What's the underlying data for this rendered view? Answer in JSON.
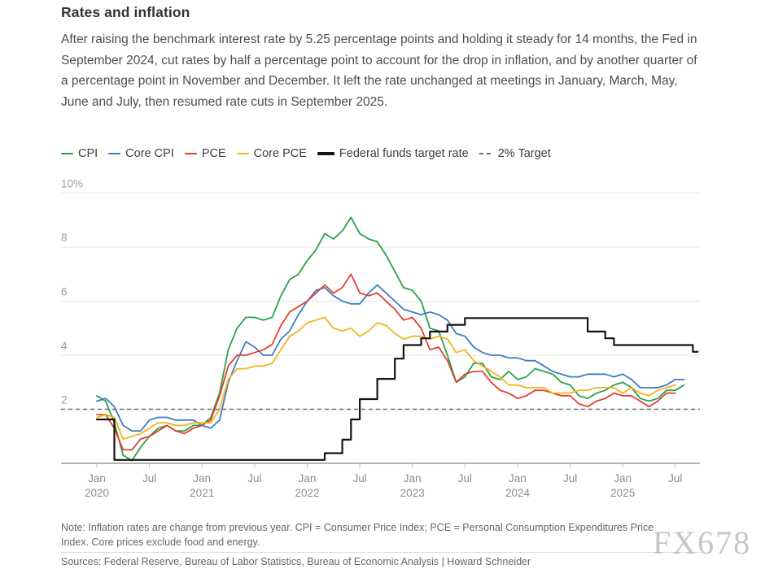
{
  "header": {
    "title": "Rates and inflation",
    "description": "After raising the benchmark interest rate by 5.25 percentage points and holding it steady for 14 months, the Fed in September 2024, cut rates by half a percentage point to account for the drop in inflation, and by another quarter of a percentage point in November and December. It left the rate unchanged at meetings in January, March, May, June and July, then resumed rate cuts in September 2025."
  },
  "legend": {
    "items": [
      {
        "label": "CPI",
        "color": "#2aa148",
        "style": "line"
      },
      {
        "label": "Core CPI",
        "color": "#3d7dc1",
        "style": "line"
      },
      {
        "label": "PCE",
        "color": "#e2402f",
        "style": "line"
      },
      {
        "label": "Core PCE",
        "color": "#f0b41f",
        "style": "line"
      },
      {
        "label": "Federal funds target rate",
        "color": "#141414",
        "style": "thick-line"
      },
      {
        "label": "2% Target",
        "color": "#6b6b6b",
        "style": "dashed"
      }
    ]
  },
  "chart_data": {
    "type": "line",
    "title": "Rates and inflation",
    "x_start": "2020-01",
    "x_frequency": "monthly",
    "xlabel": "",
    "ylabel": "percent",
    "ylim": [
      0,
      10
    ],
    "grid": true,
    "legend_position": "top",
    "yticks": [
      {
        "value": 2,
        "label": "2"
      },
      {
        "value": 4,
        "label": "4"
      },
      {
        "value": 6,
        "label": "6"
      },
      {
        "value": 8,
        "label": "8"
      },
      {
        "value": 10,
        "label": "10%"
      }
    ],
    "xticks": [
      {
        "m": 0,
        "label": "Jan",
        "year": "2020"
      },
      {
        "m": 6,
        "label": "Jul",
        "year": ""
      },
      {
        "m": 12,
        "label": "Jan",
        "year": "2021"
      },
      {
        "m": 18,
        "label": "Jul",
        "year": ""
      },
      {
        "m": 24,
        "label": "Jan",
        "year": "2022"
      },
      {
        "m": 30,
        "label": "Jul",
        "year": ""
      },
      {
        "m": 36,
        "label": "Jan",
        "year": "2023"
      },
      {
        "m": 42,
        "label": "Jul",
        "year": ""
      },
      {
        "m": 48,
        "label": "Jan",
        "year": "2024"
      },
      {
        "m": 54,
        "label": "Jul",
        "year": ""
      },
      {
        "m": 60,
        "label": "Jan",
        "year": "2025"
      },
      {
        "m": 66,
        "label": "Jul",
        "year": ""
      }
    ],
    "target_line": {
      "label": "2% Target",
      "value": 2,
      "color": "#6b6b6b"
    },
    "series": [
      {
        "name": "CPI",
        "color": "#2aa148",
        "step": false,
        "values": [
          2.5,
          2.3,
          1.5,
          0.3,
          0.1,
          0.6,
          1.0,
          1.3,
          1.4,
          1.2,
          1.2,
          1.4,
          1.4,
          1.7,
          2.6,
          4.2,
          5.0,
          5.4,
          5.4,
          5.3,
          5.4,
          6.2,
          6.8,
          7.0,
          7.5,
          7.9,
          8.5,
          8.3,
          8.6,
          9.1,
          8.5,
          8.3,
          8.2,
          7.7,
          7.1,
          6.5,
          6.4,
          6.0,
          5.0,
          4.9,
          4.0,
          3.0,
          3.2,
          3.7,
          3.7,
          3.2,
          3.1,
          3.4,
          3.1,
          3.2,
          3.5,
          3.4,
          3.3,
          3.0,
          2.9,
          2.5,
          2.4,
          2.6,
          2.7,
          2.9,
          3.0,
          2.8,
          2.4,
          2.3,
          2.4,
          2.7,
          2.7,
          2.9
        ]
      },
      {
        "name": "Core CPI",
        "color": "#3d7dc1",
        "step": false,
        "values": [
          2.3,
          2.4,
          2.1,
          1.4,
          1.2,
          1.2,
          1.6,
          1.7,
          1.7,
          1.6,
          1.6,
          1.6,
          1.4,
          1.3,
          1.6,
          3.0,
          3.8,
          4.5,
          4.3,
          4.0,
          4.0,
          4.6,
          4.9,
          5.5,
          6.0,
          6.4,
          6.5,
          6.2,
          6.0,
          5.9,
          5.9,
          6.3,
          6.6,
          6.3,
          6.0,
          5.7,
          5.6,
          5.5,
          5.6,
          5.5,
          5.3,
          4.8,
          4.7,
          4.3,
          4.1,
          4.0,
          4.0,
          3.9,
          3.9,
          3.8,
          3.8,
          3.6,
          3.4,
          3.3,
          3.2,
          3.2,
          3.3,
          3.3,
          3.3,
          3.2,
          3.3,
          3.1,
          2.8,
          2.8,
          2.8,
          2.9,
          3.1,
          3.1
        ]
      },
      {
        "name": "PCE",
        "color": "#e2402f",
        "step": false,
        "values": [
          1.8,
          1.8,
          1.3,
          0.5,
          0.5,
          0.9,
          1.0,
          1.2,
          1.4,
          1.2,
          1.1,
          1.3,
          1.4,
          1.6,
          2.5,
          3.6,
          4.0,
          4.0,
          4.1,
          4.2,
          4.4,
          5.1,
          5.6,
          5.8,
          6.0,
          6.3,
          6.6,
          6.3,
          6.5,
          7.0,
          6.3,
          6.2,
          6.3,
          6.0,
          5.7,
          5.3,
          5.4,
          5.0,
          4.2,
          4.3,
          3.8,
          3.0,
          3.3,
          3.4,
          3.4,
          3.0,
          2.7,
          2.6,
          2.4,
          2.5,
          2.7,
          2.7,
          2.6,
          2.5,
          2.5,
          2.2,
          2.1,
          2.3,
          2.4,
          2.6,
          2.5,
          2.5,
          2.3,
          2.1,
          2.3,
          2.6,
          2.6
        ]
      },
      {
        "name": "Core PCE",
        "color": "#f0b41f",
        "step": false,
        "values": [
          1.7,
          1.8,
          1.7,
          0.9,
          1.0,
          1.1,
          1.3,
          1.5,
          1.5,
          1.4,
          1.4,
          1.5,
          1.5,
          1.5,
          2.0,
          3.1,
          3.5,
          3.5,
          3.6,
          3.6,
          3.7,
          4.2,
          4.7,
          4.9,
          5.2,
          5.3,
          5.4,
          5.0,
          4.9,
          5.0,
          4.7,
          4.9,
          5.2,
          5.1,
          4.8,
          4.6,
          4.7,
          4.7,
          4.6,
          4.7,
          4.6,
          4.1,
          4.2,
          3.8,
          3.6,
          3.4,
          3.2,
          2.9,
          2.9,
          2.8,
          2.8,
          2.8,
          2.6,
          2.6,
          2.6,
          2.7,
          2.7,
          2.8,
          2.8,
          2.8,
          2.6,
          2.8,
          2.6,
          2.5,
          2.7,
          2.8,
          2.9
        ]
      },
      {
        "name": "Federal funds target rate",
        "color": "#141414",
        "step": true,
        "width": 2.2,
        "values": [
          1.625,
          1.625,
          0.125,
          0.125,
          0.125,
          0.125,
          0.125,
          0.125,
          0.125,
          0.125,
          0.125,
          0.125,
          0.125,
          0.125,
          0.125,
          0.125,
          0.125,
          0.125,
          0.125,
          0.125,
          0.125,
          0.125,
          0.125,
          0.125,
          0.125,
          0.125,
          0.375,
          0.375,
          0.875,
          1.625,
          2.375,
          2.375,
          3.125,
          3.125,
          3.875,
          4.375,
          4.375,
          4.625,
          4.875,
          4.875,
          5.125,
          5.125,
          5.375,
          5.375,
          5.375,
          5.375,
          5.375,
          5.375,
          5.375,
          5.375,
          5.375,
          5.375,
          5.375,
          5.375,
          5.375,
          5.375,
          4.875,
          4.875,
          4.625,
          4.375,
          4.375,
          4.375,
          4.375,
          4.375,
          4.375,
          4.375,
          4.375,
          4.375,
          4.125
        ]
      }
    ]
  },
  "footer": {
    "note": "Note: Inflation rates are change from previous year. CPI = Consumer Price Index; PCE = Personal Consumption Expenditures Price Index. Core prices exclude food and energy.",
    "sources": "Sources: Federal Reserve, Bureau of Labor Statistics, Bureau of Economic Analysis | Howard Schneider",
    "watermark": "FX678"
  }
}
